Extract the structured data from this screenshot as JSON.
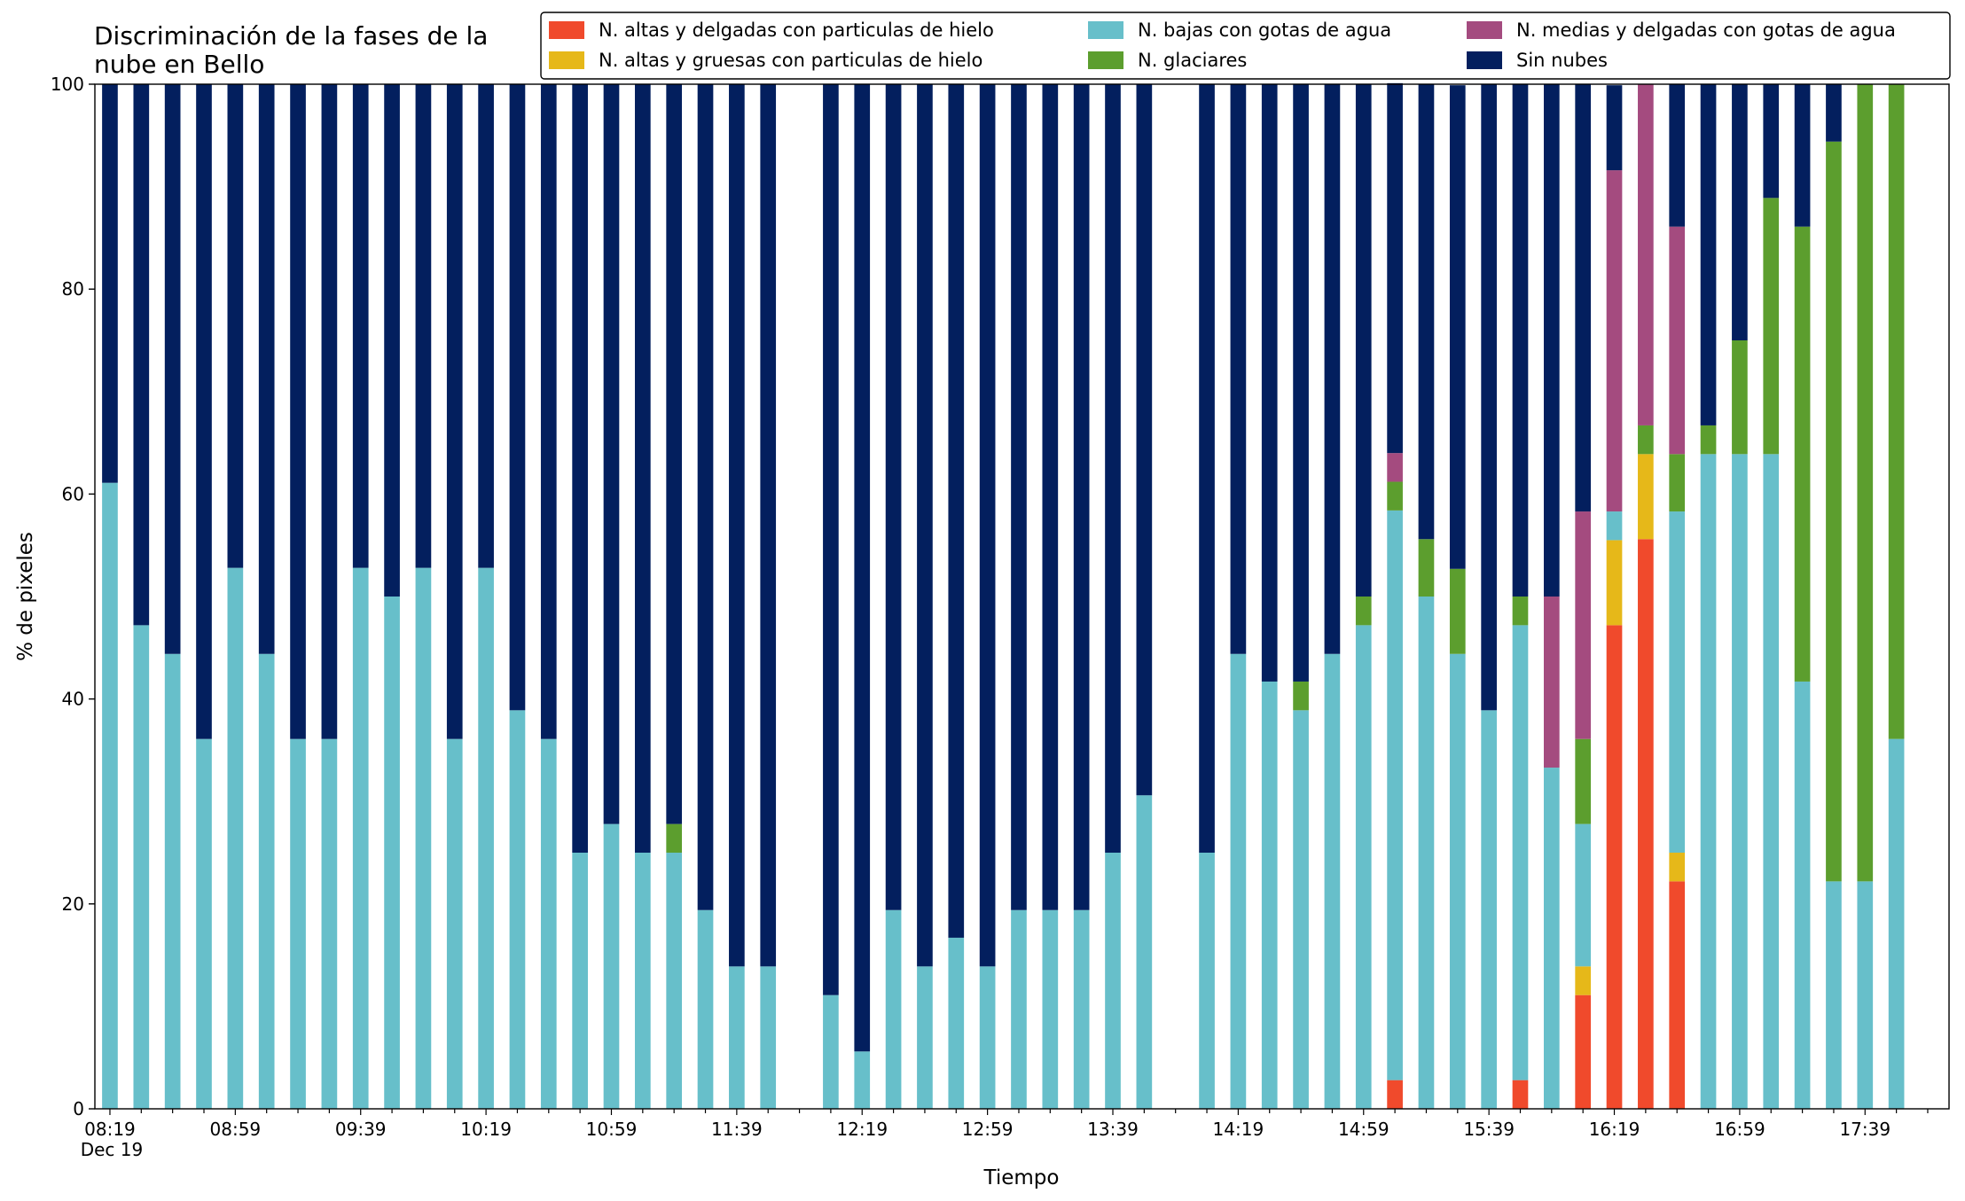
{
  "chart_data": {
    "type": "stacked_bar",
    "title_lines": [
      "Discriminación de la fases de la",
      "nube en Bello"
    ],
    "x_label": "Tiempo",
    "y_label": "% de pixeles",
    "date_label": "Dec 19",
    "categories": [
      "08:19",
      null,
      null,
      null,
      "08:59",
      null,
      null,
      null,
      "09:39",
      null,
      null,
      null,
      "10:19",
      null,
      null,
      null,
      "10:59",
      null,
      null,
      null,
      "11:39",
      null,
      null,
      null,
      "12:19",
      null,
      null,
      null,
      "12:59",
      null,
      null,
      null,
      "13:39",
      null,
      null,
      null,
      "14:19",
      null,
      null,
      null,
      "14:59",
      null,
      null,
      null,
      "15:39",
      null,
      null,
      null,
      "16:19",
      null,
      null,
      null,
      "16:59",
      null,
      null,
      null,
      "17:39",
      null
    ],
    "ylim": [
      0,
      100
    ],
    "yticks": [
      0,
      20,
      40,
      60,
      80,
      100
    ],
    "series": [
      {
        "name": "N. altas y delgadas con particulas de hielo",
        "color": "#f04a2c",
        "values": [
          0,
          0,
          0,
          0,
          0,
          0,
          0,
          0,
          0,
          0,
          0,
          0,
          0,
          0,
          0,
          0,
          0,
          0,
          0,
          0,
          0,
          0,
          null,
          0,
          0,
          0,
          0,
          0,
          0,
          0,
          0,
          0,
          0,
          0,
          null,
          0,
          0,
          0,
          0,
          0,
          0,
          2.8,
          0,
          0,
          0,
          2.8,
          0,
          11.1,
          47.2,
          55.6,
          22.2,
          0,
          0,
          0,
          0,
          0,
          0,
          0
        ]
      },
      {
        "name": "N. altas y gruesas con particulas de hielo",
        "color": "#e6b819",
        "values": [
          0,
          0,
          0,
          0,
          0,
          0,
          0,
          0,
          0,
          0,
          0,
          0,
          0,
          0,
          0,
          0,
          0,
          0,
          0,
          0,
          0,
          0,
          null,
          0,
          0,
          0,
          0,
          0,
          0,
          0,
          0,
          0,
          0,
          0,
          null,
          0,
          0,
          0,
          0,
          0,
          0,
          0,
          0,
          0,
          0,
          0,
          0,
          2.8,
          8.3,
          8.3,
          2.8,
          0,
          0,
          0,
          0,
          0,
          0,
          0
        ]
      },
      {
        "name": "N. bajas con gotas de agua",
        "color": "#67bfca",
        "values": [
          61.1,
          47.2,
          44.4,
          36.1,
          52.8,
          44.4,
          36.1,
          36.1,
          52.8,
          50,
          52.8,
          36.1,
          52.8,
          38.9,
          36.1,
          25,
          27.8,
          25,
          25,
          19.4,
          13.9,
          13.9,
          null,
          11.1,
          5.6,
          19.4,
          13.9,
          16.7,
          13.9,
          19.4,
          19.4,
          19.4,
          25,
          30.6,
          null,
          25,
          44.4,
          41.7,
          38.9,
          44.4,
          47.2,
          55.6,
          50,
          44.4,
          38.9,
          44.4,
          33.3,
          13.9,
          2.8,
          0,
          33.3,
          63.9,
          63.9,
          63.9,
          41.7,
          22.2,
          22.2,
          36.1
        ]
      },
      {
        "name": "N. glaciares",
        "color": "#5c9e2e",
        "values": [
          0,
          0,
          0,
          0,
          0,
          0,
          0,
          0,
          0,
          0,
          0,
          0,
          0,
          0,
          0,
          0,
          0,
          0,
          2.8,
          0,
          0,
          0,
          null,
          0,
          0,
          0,
          0,
          0,
          0,
          0,
          0,
          0,
          0,
          0,
          null,
          0,
          0,
          0,
          2.8,
          0,
          2.8,
          2.8,
          5.6,
          8.3,
          0,
          2.8,
          0,
          8.3,
          0,
          2.8,
          5.6,
          2.8,
          11.1,
          25,
          44.4,
          72.2,
          77.8,
          63.9
        ]
      },
      {
        "name": "N. medias y delgadas con gotas de agua",
        "color": "#a44b7f",
        "values": [
          0,
          0,
          0,
          0,
          0,
          0,
          0,
          0,
          0,
          0,
          0,
          0,
          0,
          0,
          0,
          0,
          0,
          0,
          0,
          0,
          0,
          0,
          null,
          0,
          0,
          0,
          0,
          0,
          0,
          0,
          0,
          0,
          0,
          0,
          null,
          0,
          0,
          0,
          0,
          0,
          0,
          2.8,
          0,
          0,
          0,
          0,
          16.7,
          22.2,
          33.3,
          33.3,
          22.2,
          0,
          0,
          0,
          0,
          0,
          0,
          0
        ]
      },
      {
        "name": "Sin nubes",
        "color": "#031f5e",
        "values": [
          38.9,
          52.8,
          55.6,
          63.9,
          47.2,
          55.6,
          63.9,
          63.9,
          47.2,
          50,
          47.2,
          63.9,
          47.2,
          61.1,
          63.9,
          75,
          72.2,
          75,
          72.2,
          80.6,
          86.1,
          86.1,
          null,
          88.9,
          94.4,
          80.6,
          86.1,
          83.3,
          86.1,
          80.6,
          80.6,
          80.6,
          75,
          69.4,
          null,
          75,
          55.6,
          58.3,
          58.3,
          55.6,
          50,
          36.1,
          44.4,
          47.2,
          61.1,
          50,
          50,
          41.7,
          8.3,
          0,
          13.9,
          33.3,
          25,
          11.1,
          13.9,
          5.6,
          0,
          0
        ]
      }
    ]
  }
}
